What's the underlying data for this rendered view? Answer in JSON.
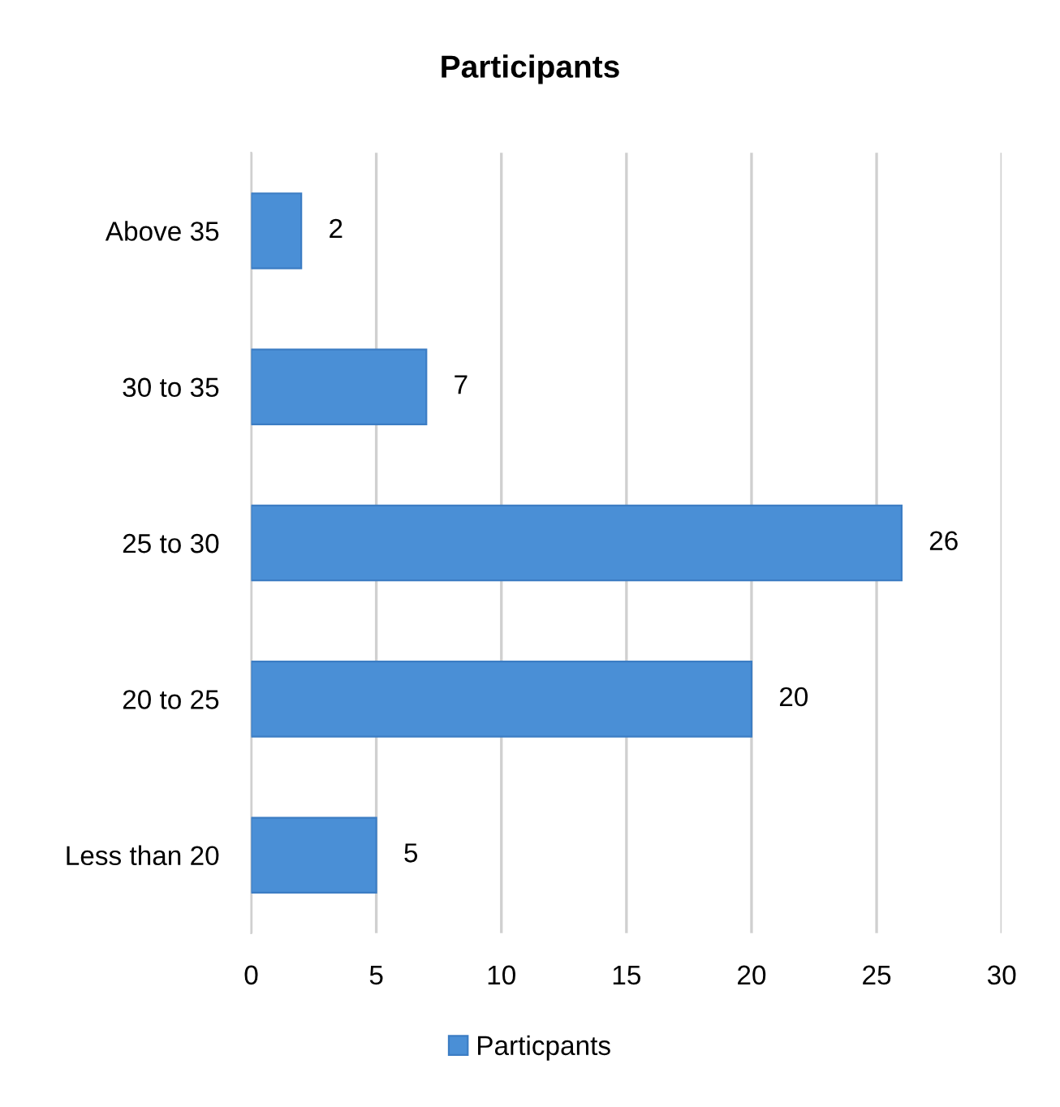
{
  "chart_data": {
    "type": "bar",
    "orientation": "horizontal",
    "title": "Participants",
    "categories": [
      "Above 35",
      "30 to 35",
      "25 to 30",
      "20 to 25",
      "Less than 20"
    ],
    "series": [
      {
        "name": "Particpants",
        "color": "#4a8fd6",
        "values": [
          2,
          7,
          26,
          20,
          5
        ]
      }
    ],
    "xlim": [
      0,
      30
    ],
    "xticks": [
      0,
      5,
      10,
      15,
      20,
      25,
      30
    ],
    "grid": "x",
    "legend": "bottom",
    "data_labels": true
  }
}
